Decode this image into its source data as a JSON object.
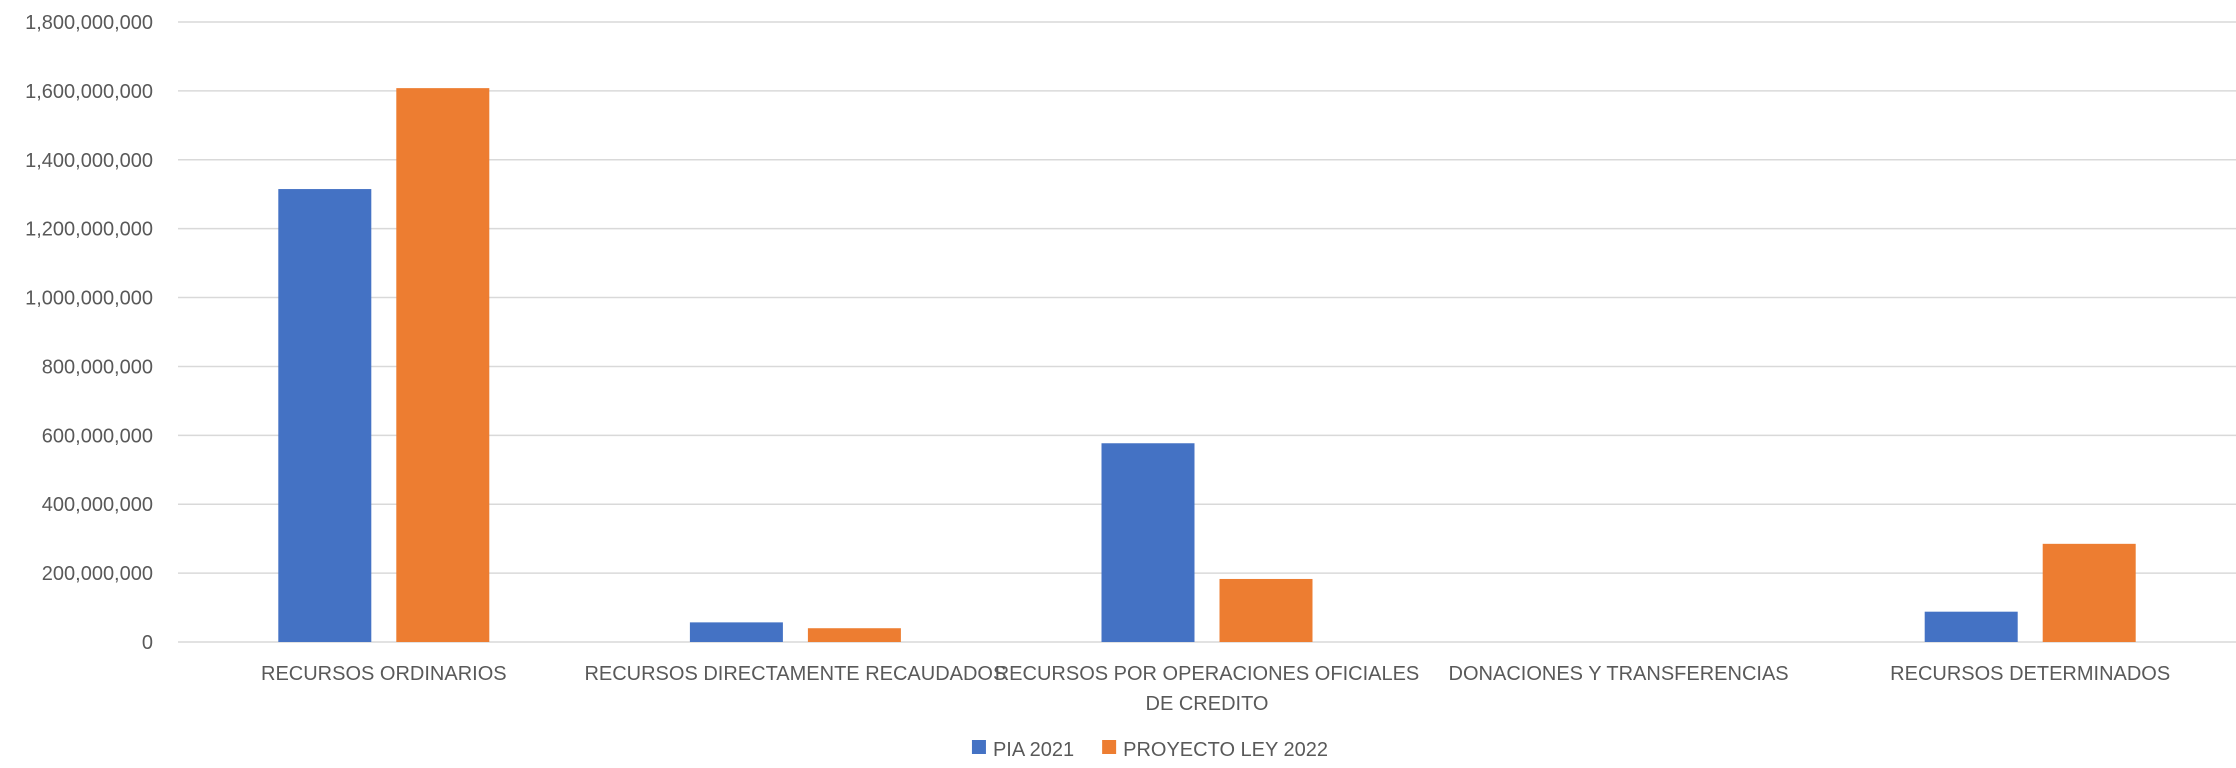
{
  "chart_data": {
    "type": "bar",
    "title": "",
    "xlabel": "",
    "ylabel": "",
    "ylim": [
      0,
      1800000000
    ],
    "y_ticks": [
      0,
      200000000,
      400000000,
      600000000,
      800000000,
      1000000000,
      1200000000,
      1400000000,
      1600000000,
      1800000000
    ],
    "y_tick_labels": [
      "0",
      "200,000,000",
      "400,000,000",
      "600,000,000",
      "800,000,000",
      "1,000,000,000",
      "1,200,000,000",
      "1,400,000,000",
      "1,600,000,000",
      "1,800,000,000"
    ],
    "grid": true,
    "legend_position": "bottom",
    "categories": [
      [
        "RECURSOS ORDINARIOS"
      ],
      [
        "RECURSOS DIRECTAMENTE RECAUDADOS"
      ],
      [
        "RECURSOS POR OPERACIONES OFICIALES",
        "DE CREDITO"
      ],
      [
        "DONACIONES Y TRANSFERENCIAS"
      ],
      [
        "RECURSOS DETERMINADOS"
      ]
    ],
    "series": [
      {
        "name": "PIA 2021",
        "color": "#4472c4",
        "values": [
          1315000000,
          57000000,
          577000000,
          0,
          88000000
        ]
      },
      {
        "name": "PROYECTO LEY 2022",
        "color": "#ed7d31",
        "values": [
          1608000000,
          40000000,
          183000000,
          0,
          285000000
        ]
      }
    ]
  }
}
